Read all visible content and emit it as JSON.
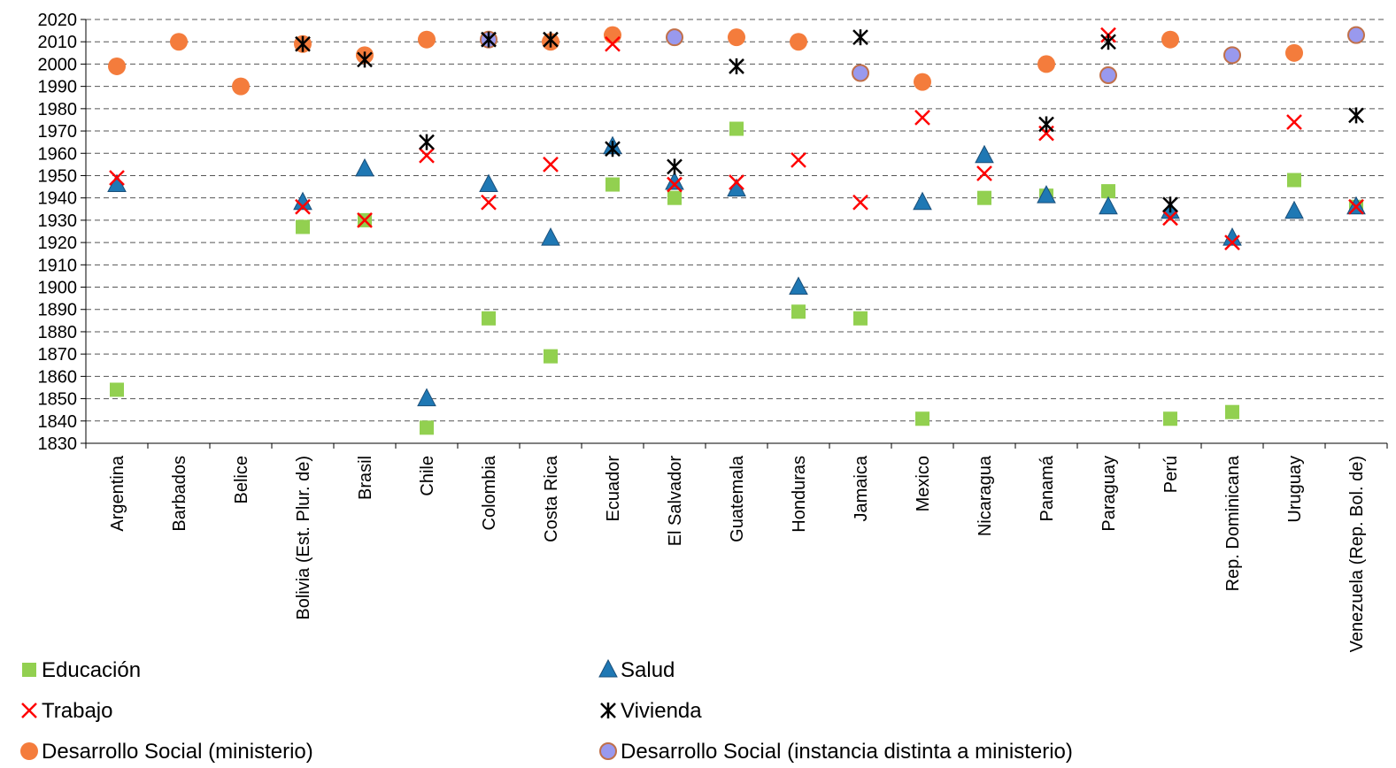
{
  "chart_data": {
    "type": "scatter",
    "title": "",
    "xlabel": "",
    "ylabel": "",
    "ylim": [
      1830,
      2020
    ],
    "ytick_step": 10,
    "yticks": [
      "1830",
      "1840",
      "1850",
      "1860",
      "1870",
      "1880",
      "1890",
      "1900",
      "1910",
      "1920",
      "1930",
      "1940",
      "1950",
      "1960",
      "1970",
      "1980",
      "1990",
      "2000",
      "2010",
      "2020"
    ],
    "grid": "horizontal dashed",
    "legend_position": "bottom",
    "categories": [
      "Argentina",
      "Barbados",
      "Belice",
      "Bolivia (Est. Plur. de)",
      "Brasil",
      "Chile",
      "Colombia",
      "Costa Rica",
      "Ecuador",
      "El Salvador",
      "Guatemala",
      "Honduras",
      "Jamaica",
      "Mexico",
      "Nicaragua",
      "Panamá",
      "Paraguay",
      "Perú",
      "Rep. Dominicana",
      "Uruguay",
      "Venezuela (Rep. Bol. de)"
    ],
    "series": [
      {
        "name": "Educación",
        "marker": "square",
        "color": "#92D050",
        "values": [
          1854,
          null,
          null,
          1927,
          1930,
          1837,
          1886,
          1869,
          1946,
          1940,
          1971,
          1889,
          1886,
          1841,
          1940,
          1941,
          1943,
          1841,
          1844,
          1948,
          1936
        ]
      },
      {
        "name": "Salud",
        "marker": "triangle",
        "color": "#1F78B4",
        "values": [
          1946,
          null,
          null,
          1938,
          1953,
          1850,
          1946,
          1922,
          1963,
          1947,
          1944,
          1900,
          null,
          1938,
          1959,
          1941,
          1936,
          1934,
          1922,
          1934,
          1936
        ]
      },
      {
        "name": "Trabajo",
        "marker": "x",
        "color": "#FF0000",
        "values": [
          1949,
          null,
          null,
          1936,
          1930,
          1959,
          1938,
          1955,
          2009,
          1946,
          1947,
          1957,
          1938,
          1976,
          1951,
          1969,
          2013,
          1931,
          1920,
          1974,
          1936
        ]
      },
      {
        "name": "Vivienda",
        "marker": "asterisk",
        "color": "#000000",
        "values": [
          null,
          null,
          null,
          2009,
          2002,
          1965,
          2011,
          2011,
          1962,
          1954,
          1999,
          null,
          2012,
          null,
          null,
          1973,
          2010,
          1937,
          null,
          null,
          1977
        ]
      },
      {
        "name": "Desarrollo Social (ministerio)",
        "marker": "circle",
        "color": "#F47C3C",
        "values": [
          1999,
          2010,
          1990,
          2009,
          2004,
          2011,
          null,
          2010,
          2013,
          null,
          2012,
          2010,
          null,
          1992,
          null,
          2000,
          null,
          2011,
          null,
          2005,
          null
        ]
      },
      {
        "name": "Desarrollo Social (instancia distinta a ministerio)",
        "marker": "circle-outlined",
        "color": "#9999EE",
        "values": [
          null,
          null,
          null,
          null,
          null,
          null,
          2011,
          null,
          null,
          2012,
          null,
          null,
          1996,
          null,
          null,
          null,
          1995,
          null,
          2004,
          null,
          2013
        ]
      }
    ]
  }
}
